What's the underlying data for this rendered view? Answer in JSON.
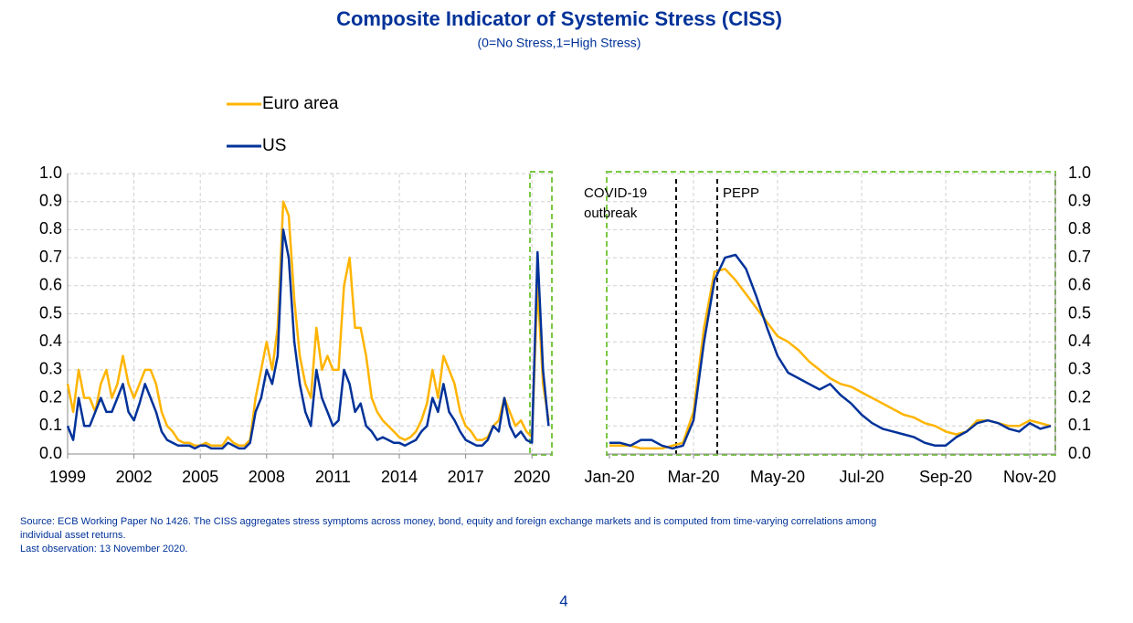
{
  "header": {
    "title": "Composite Indicator of Systemic Stress (CISS)",
    "subtitle": "(0=No Stress,1=High Stress)"
  },
  "footer": {
    "source": [
      "Source: ECB Working Paper No 1426. The CISS aggregates stress symptoms across money, bond, equity and foreign exchange markets and is computed from time-varying correlations among",
      "individual asset returns.",
      "Last observation: 13 November 2020."
    ],
    "page_number": "4"
  },
  "chart_data": [
    {
      "type": "line",
      "legend": "top-left",
      "grid": true,
      "x": [
        1999,
        1999.25,
        1999.5,
        1999.75,
        2000,
        2000.25,
        2000.5,
        2000.75,
        2001,
        2001.25,
        2001.5,
        2001.75,
        2002,
        2002.25,
        2002.5,
        2002.75,
        2003,
        2003.25,
        2003.5,
        2003.75,
        2004,
        2004.25,
        2004.5,
        2004.75,
        2005,
        2005.25,
        2005.5,
        2005.75,
        2006,
        2006.25,
        2006.5,
        2006.75,
        2007,
        2007.25,
        2007.5,
        2007.75,
        2008,
        2008.25,
        2008.5,
        2008.75,
        2009,
        2009.25,
        2009.5,
        2009.75,
        2010,
        2010.25,
        2010.5,
        2010.75,
        2011,
        2011.25,
        2011.5,
        2011.75,
        2012,
        2012.25,
        2012.5,
        2012.75,
        2013,
        2013.25,
        2013.5,
        2013.75,
        2014,
        2014.25,
        2014.5,
        2014.75,
        2015,
        2015.25,
        2015.5,
        2015.75,
        2016,
        2016.25,
        2016.5,
        2016.75,
        2017,
        2017.25,
        2017.5,
        2017.75,
        2018,
        2018.25,
        2018.5,
        2018.75,
        2019,
        2019.25,
        2019.5,
        2019.75,
        2020,
        2020.25,
        2020.5,
        2020.75
      ],
      "series": [
        {
          "name": "Euro area",
          "color": "#ffb400",
          "values": [
            0.25,
            0.15,
            0.3,
            0.2,
            0.2,
            0.15,
            0.25,
            0.3,
            0.2,
            0.25,
            0.35,
            0.25,
            0.2,
            0.25,
            0.3,
            0.3,
            0.25,
            0.15,
            0.1,
            0.08,
            0.05,
            0.04,
            0.04,
            0.03,
            0.03,
            0.04,
            0.03,
            0.03,
            0.03,
            0.06,
            0.04,
            0.03,
            0.03,
            0.05,
            0.2,
            0.3,
            0.4,
            0.3,
            0.45,
            0.9,
            0.85,
            0.55,
            0.35,
            0.25,
            0.2,
            0.45,
            0.3,
            0.35,
            0.3,
            0.3,
            0.6,
            0.7,
            0.45,
            0.45,
            0.35,
            0.2,
            0.15,
            0.12,
            0.1,
            0.08,
            0.06,
            0.05,
            0.06,
            0.08,
            0.12,
            0.18,
            0.3,
            0.2,
            0.35,
            0.3,
            0.25,
            0.15,
            0.1,
            0.08,
            0.05,
            0.05,
            0.06,
            0.1,
            0.12,
            0.2,
            0.15,
            0.1,
            0.12,
            0.08,
            0.06,
            0.6,
            0.25,
            0.12
          ]
        },
        {
          "name": "US",
          "color": "#003299",
          "values": [
            0.1,
            0.05,
            0.2,
            0.1,
            0.1,
            0.15,
            0.2,
            0.15,
            0.15,
            0.2,
            0.25,
            0.15,
            0.12,
            0.18,
            0.25,
            0.2,
            0.15,
            0.08,
            0.05,
            0.04,
            0.03,
            0.03,
            0.03,
            0.02,
            0.03,
            0.03,
            0.02,
            0.02,
            0.02,
            0.04,
            0.03,
            0.02,
            0.02,
            0.04,
            0.15,
            0.2,
            0.3,
            0.25,
            0.35,
            0.8,
            0.7,
            0.4,
            0.25,
            0.15,
            0.1,
            0.3,
            0.2,
            0.15,
            0.1,
            0.12,
            0.3,
            0.25,
            0.15,
            0.18,
            0.1,
            0.08,
            0.05,
            0.06,
            0.05,
            0.04,
            0.04,
            0.03,
            0.04,
            0.05,
            0.08,
            0.1,
            0.2,
            0.15,
            0.25,
            0.15,
            0.12,
            0.08,
            0.05,
            0.04,
            0.03,
            0.03,
            0.05,
            0.1,
            0.08,
            0.2,
            0.1,
            0.06,
            0.08,
            0.05,
            0.04,
            0.72,
            0.3,
            0.1
          ]
        }
      ],
      "xlim": [
        1999,
        2020.9
      ],
      "xticks": [
        1999,
        2002,
        2005,
        2008,
        2011,
        2014,
        2017,
        2020
      ],
      "ylim": [
        0,
        1
      ],
      "yticks": [
        {
          "value": 0,
          "label": "0.0"
        },
        0.1,
        0.2,
        0.3,
        0.4,
        0.5,
        0.6,
        0.7,
        0.8,
        0.9,
        {
          "value": 1,
          "label": "1.0"
        }
      ]
    },
    {
      "type": "line",
      "grid": true,
      "categories": [
        "Jan-20",
        null,
        null,
        null,
        null,
        null,
        null,
        null,
        "Mar-20",
        null,
        null,
        null,
        null,
        null,
        null,
        null,
        "May-20",
        null,
        null,
        null,
        null,
        null,
        null,
        null,
        "Jul-20",
        null,
        null,
        null,
        null,
        null,
        null,
        null,
        "Sep-20",
        null,
        null,
        null,
        null,
        null,
        null,
        null,
        "Nov-20",
        null,
        null
      ],
      "series": [
        {
          "name": "Euro area",
          "color": "#ffb400",
          "values": [
            0.03,
            0.03,
            0.03,
            0.02,
            0.02,
            0.02,
            0.03,
            0.04,
            0.15,
            0.45,
            0.65,
            0.66,
            0.62,
            0.57,
            0.52,
            0.47,
            0.42,
            0.4,
            0.37,
            0.33,
            0.3,
            0.27,
            0.25,
            0.24,
            0.22,
            0.2,
            0.18,
            0.16,
            0.14,
            0.13,
            0.11,
            0.1,
            0.08,
            0.07,
            0.08,
            0.12,
            0.12,
            0.11,
            0.1,
            0.1,
            0.12,
            0.11,
            0.1
          ]
        },
        {
          "name": "US",
          "color": "#003299",
          "values": [
            0.04,
            0.04,
            0.03,
            0.05,
            0.05,
            0.03,
            0.02,
            0.03,
            0.12,
            0.4,
            0.62,
            0.7,
            0.71,
            0.66,
            0.56,
            0.45,
            0.35,
            0.29,
            0.27,
            0.25,
            0.23,
            0.25,
            0.21,
            0.18,
            0.14,
            0.11,
            0.09,
            0.08,
            0.07,
            0.06,
            0.04,
            0.03,
            0.03,
            0.06,
            0.08,
            0.11,
            0.12,
            0.11,
            0.09,
            0.08,
            0.11,
            0.09,
            0.1
          ]
        }
      ],
      "annotations": [
        {
          "lines": [
            "COVID-19",
            "outbreak"
          ]
        },
        {
          "lines": [
            "PEPP"
          ]
        }
      ],
      "ylim": [
        0,
        1
      ],
      "yticks": [
        {
          "value": 0,
          "label": "0.0"
        },
        0.1,
        0.2,
        0.3,
        0.4,
        0.5,
        0.6,
        0.7,
        0.8,
        0.9,
        {
          "value": 1,
          "label": "1.0"
        }
      ]
    }
  ]
}
